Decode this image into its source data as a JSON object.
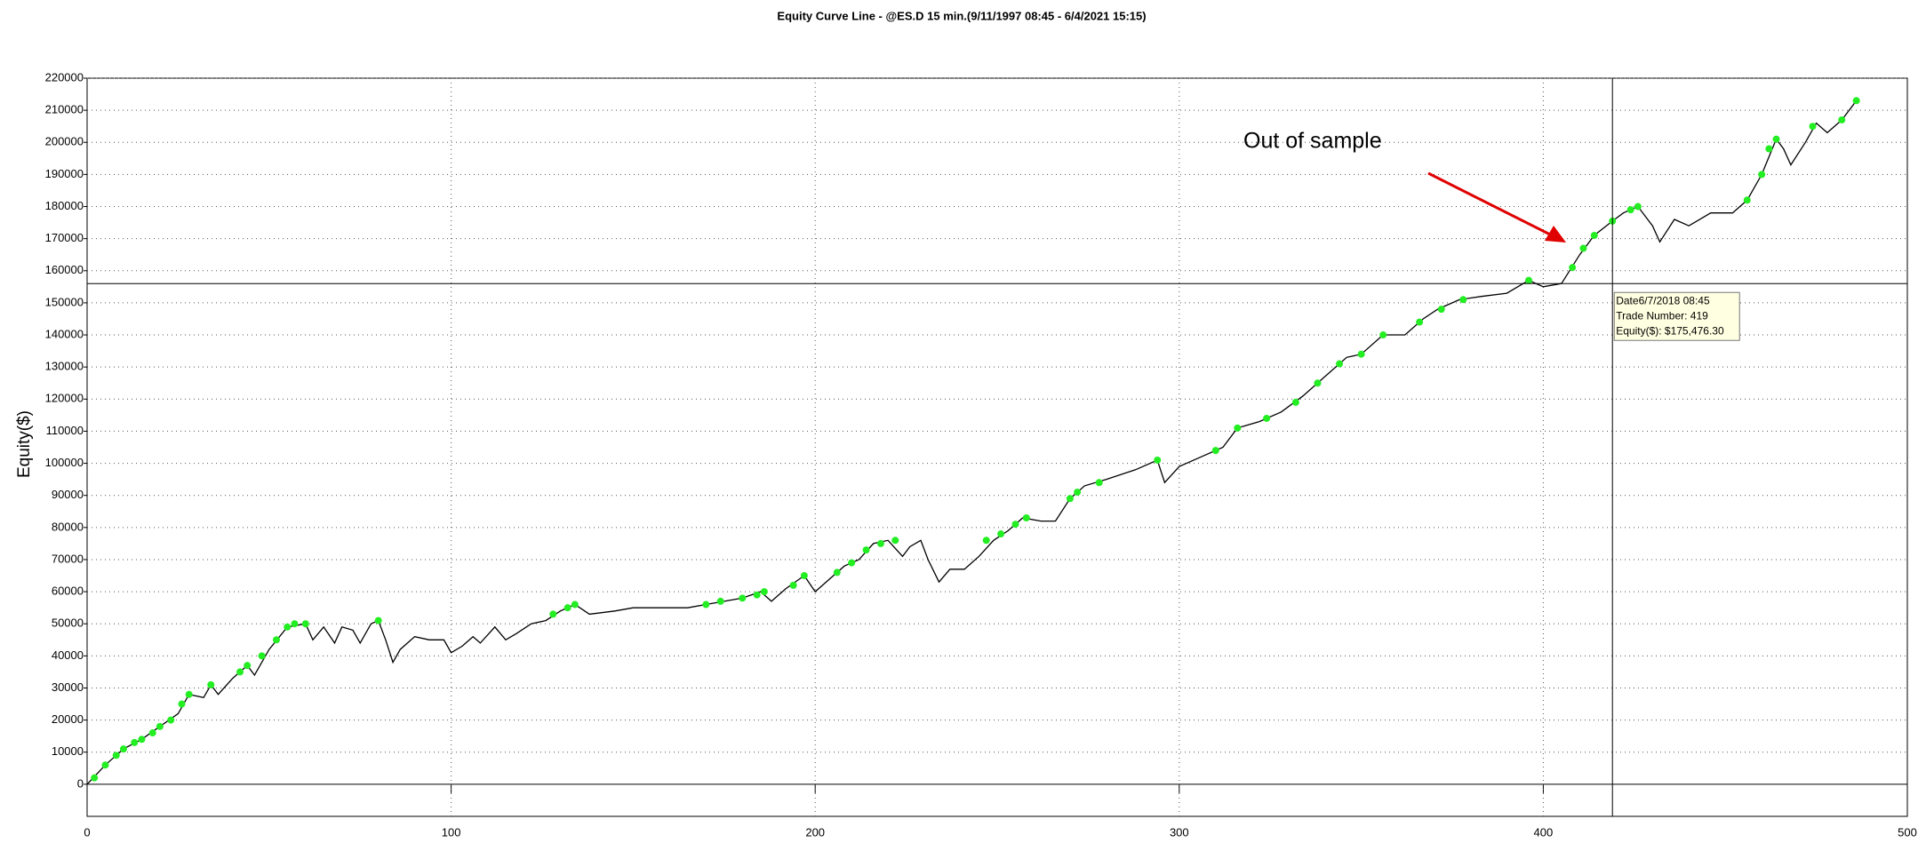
{
  "chart_data": {
    "type": "line",
    "title": "Equity Curve Line - @ES.D 15 min.(9/11/1997 08:45 - 6/4/2021 15:15)",
    "y_label": "Equity($)",
    "xlim": [
      0,
      500
    ],
    "xticks": [
      0,
      100,
      200,
      300,
      400,
      500
    ],
    "ylim": [
      -10000,
      220000
    ],
    "yticks": [
      0,
      10000,
      20000,
      30000,
      40000,
      50000,
      60000,
      70000,
      80000,
      90000,
      100000,
      110000,
      120000,
      130000,
      140000,
      150000,
      160000,
      170000,
      180000,
      190000,
      200000,
      210000,
      220000
    ],
    "grid": true,
    "series": [
      {
        "color": "#000000",
        "style": "line",
        "x": [
          0,
          5,
          10,
          15,
          20,
          25,
          28,
          32,
          34,
          36,
          40,
          44,
          46,
          50,
          55,
          60,
          62,
          65,
          68,
          70,
          73,
          75,
          78,
          80,
          82,
          84,
          86,
          90,
          94,
          98,
          100,
          103,
          106,
          108,
          112,
          115,
          118,
          122,
          126,
          130,
          134,
          138,
          145,
          150,
          160,
          165,
          170,
          175,
          180,
          185,
          188,
          192,
          197,
          200,
          204,
          208,
          212,
          216,
          220,
          224,
          226,
          229,
          231,
          234,
          237,
          241,
          245,
          249,
          253,
          257,
          262,
          266,
          270,
          274,
          280,
          288,
          294,
          296,
          300,
          306,
          312,
          316,
          322,
          328,
          334,
          340,
          346,
          350,
          356,
          362,
          367,
          371,
          377,
          383,
          390,
          396,
          400,
          405,
          410,
          414,
          419,
          422,
          426,
          430,
          432,
          436,
          440,
          446,
          452,
          456,
          460,
          464,
          466,
          468,
          472,
          475,
          478,
          482,
          486
        ],
        "values": [
          0,
          6000,
          11000,
          14000,
          18000,
          22000,
          28000,
          27000,
          31000,
          28000,
          33000,
          37000,
          34000,
          42000,
          49000,
          50000,
          45000,
          49000,
          44000,
          49000,
          48000,
          44000,
          50000,
          51000,
          45000,
          38000,
          42000,
          46000,
          45000,
          45000,
          41000,
          43000,
          46000,
          44000,
          49000,
          45000,
          47000,
          50000,
          51000,
          54000,
          56000,
          53000,
          54000,
          55000,
          55000,
          55000,
          56000,
          57000,
          58000,
          60000,
          57000,
          61000,
          65000,
          60000,
          64000,
          68000,
          70000,
          75000,
          76000,
          71000,
          74000,
          76000,
          70000,
          63000,
          67000,
          67000,
          71000,
          76000,
          79000,
          83000,
          82000,
          82000,
          89000,
          93000,
          95000,
          98000,
          101000,
          94000,
          99000,
          102000,
          105000,
          111000,
          113000,
          116000,
          121000,
          127000,
          133000,
          134000,
          140000,
          140000,
          145000,
          148000,
          151000,
          152000,
          153000,
          157000,
          155000,
          156000,
          165000,
          171000,
          175476.3,
          178000,
          180000,
          174000,
          169000,
          176000,
          174000,
          178000,
          178000,
          182000,
          190000,
          201000,
          198000,
          193000,
          200000,
          206000,
          203000,
          207000,
          213000
        ]
      },
      {
        "color": "#22ee22",
        "style": "marker",
        "x": [
          2,
          5,
          8,
          10,
          13,
          15,
          18,
          20,
          23,
          26,
          28,
          34,
          42,
          44,
          48,
          52,
          55,
          57,
          60,
          80,
          128,
          132,
          134,
          170,
          174,
          180,
          184,
          186,
          194,
          197,
          206,
          210,
          214,
          218,
          222,
          247,
          251,
          255,
          258,
          270,
          272,
          278,
          294,
          310,
          316,
          324,
          332,
          338,
          344,
          350,
          356,
          366,
          372,
          378,
          396,
          408,
          411,
          414,
          419,
          424,
          426,
          456,
          460,
          462,
          464,
          474,
          482,
          486
        ],
        "values": [
          2000,
          6000,
          9000,
          11000,
          13000,
          14000,
          16000,
          18000,
          20000,
          25000,
          28000,
          31000,
          35000,
          37000,
          40000,
          45000,
          49000,
          50000,
          50000,
          51000,
          53000,
          55000,
          56000,
          56000,
          57000,
          58000,
          59000,
          60000,
          62000,
          65000,
          66000,
          69000,
          73000,
          75000,
          76000,
          76000,
          78000,
          81000,
          83000,
          89000,
          91000,
          94000,
          101000,
          104000,
          111000,
          114000,
          119000,
          125000,
          131000,
          134000,
          140000,
          144000,
          148000,
          151000,
          157000,
          161000,
          167000,
          171000,
          175476.3,
          179000,
          180000,
          182000,
          190000,
          198000,
          201000,
          205000,
          207000,
          213000
        ]
      }
    ],
    "crosshair": {
      "x": 419,
      "y": 156000
    },
    "tooltip": [
      "Date6/7/2018 08:45",
      "Trade Number: 419",
      "Equity($): $175,476.30"
    ],
    "annotation": {
      "text": "Out of sample",
      "color": "#e00000"
    }
  }
}
